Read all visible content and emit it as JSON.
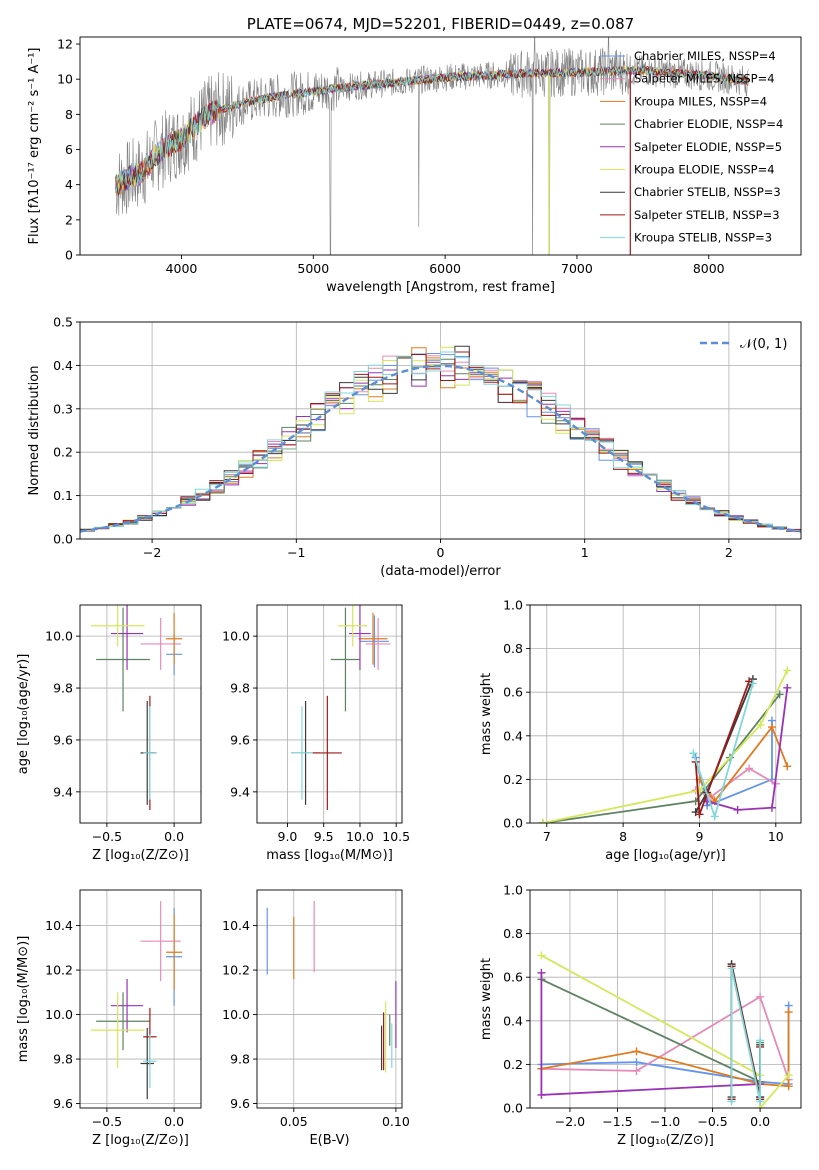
{
  "colors": {
    "chabrier_miles": "#6495ED",
    "salpeter_miles": "#E68AB8",
    "kroupa_miles": "#E07B20",
    "chabrier_elodie": "#5E8262",
    "salpeter_elodie": "#9A32B5",
    "kroupa_elodie": "#D4E85A",
    "chabrier_stelib": "#3A3A3A",
    "salpeter_stelib": "#A01818",
    "kroupa_stelib": "#80D8D8",
    "data": "#808080",
    "normal": "#5B8ED6"
  },
  "chart_data": [
    {
      "id": "spectrum",
      "type": "line",
      "title": "PLATE=0674, MJD=52201, FIBERID=0449, z=0.087",
      "xlabel": "wavelength [Angstrom, rest frame]",
      "ylabel": "Flux [fλ10⁻¹⁷ erg cm⁻² s⁻¹ A⁻¹]",
      "xlim": [
        3230,
        8700
      ],
      "ylim": [
        0,
        12.4
      ],
      "xticks": [
        "4000",
        "5000",
        "6000",
        "7000",
        "8000"
      ],
      "yticks": [
        "0",
        "2",
        "4",
        "6",
        "8",
        "10",
        "12"
      ],
      "grid": false,
      "legend_position": "right",
      "legend": [
        "Chabrier MILES, NSSP=4",
        "Salpeter MILES, NSSP=4",
        "Kroupa MILES, NSSP=4",
        "Chabrier ELODIE, NSSP=4",
        "Salpeter ELODIE, NSSP=5",
        "Kroupa ELODIE, NSSP=4",
        "Chabrier STELIB, NSSP=3",
        "Salpeter STELIB, NSSP=3",
        "Kroupa STELIB, NSSP=3"
      ],
      "data_range_x": [
        3500,
        8300
      ],
      "continuum": {
        "x": [
          3500,
          3600,
          3700,
          3800,
          3900,
          4000,
          4100,
          4200,
          4300,
          4500,
          4700,
          5000,
          5300,
          5600,
          6000,
          6500,
          7000,
          7500,
          8000,
          8300
        ],
        "y": [
          4.0,
          4.4,
          4.7,
          5.6,
          6.2,
          6.6,
          7.3,
          8.0,
          8.3,
          8.7,
          9.0,
          9.3,
          9.6,
          9.8,
          10.1,
          10.3,
          10.4,
          10.5,
          10.2,
          9.9
        ]
      }
    },
    {
      "id": "residuals",
      "type": "step",
      "xlabel": "(data-model)/error",
      "ylabel": "Normed distribution",
      "xlim": [
        -2.5,
        2.5
      ],
      "ylim": [
        0,
        0.5
      ],
      "xticks": [
        "−2",
        "−1",
        "0",
        "1",
        "2"
      ],
      "yticks": [
        "0.0",
        "0.1",
        "0.2",
        "0.3",
        "0.4",
        "0.5"
      ],
      "grid": true,
      "legend_position": "top-right",
      "legend": [
        "𝒩(0, 1)"
      ],
      "bin_width": 0.1
    },
    {
      "id": "age-vs-Z",
      "type": "errorbar",
      "xlabel": "Z [log₁₀(Z/Z⊙)]",
      "ylabel": "age  [log₁₀(age/yr)]",
      "xlim": [
        -0.7,
        0.2
      ],
      "ylim": [
        9.28,
        10.12
      ],
      "xticks": [
        "−0.5",
        "0.0"
      ],
      "yticks": [
        "9.4",
        "9.6",
        "9.8",
        "10.0"
      ],
      "grid": true,
      "points": [
        {
          "series": "chabrier_miles",
          "x": 0.0,
          "y": 9.93,
          "xerr": 0.06,
          "yerr": 0.08
        },
        {
          "series": "salpeter_miles",
          "x": -0.1,
          "y": 9.97,
          "xerr": 0.15,
          "yerr": 0.1
        },
        {
          "series": "kroupa_miles",
          "x": 0.0,
          "y": 9.99,
          "xerr": 0.06,
          "yerr": 0.1
        },
        {
          "series": "chabrier_elodie",
          "x": -0.38,
          "y": 9.91,
          "xerr": 0.2,
          "yerr": 0.2
        },
        {
          "series": "salpeter_elodie",
          "x": -0.35,
          "y": 10.01,
          "xerr": 0.12,
          "yerr": 0.14
        },
        {
          "series": "kroupa_elodie",
          "x": -0.42,
          "y": 10.04,
          "xerr": 0.2,
          "yerr": 0.08
        },
        {
          "series": "chabrier_stelib",
          "x": -0.2,
          "y": 9.55,
          "xerr": 0.05,
          "yerr": 0.2
        },
        {
          "series": "salpeter_stelib",
          "x": -0.18,
          "y": 9.55,
          "xerr": 0.05,
          "yerr": 0.22
        },
        {
          "series": "kroupa_stelib",
          "x": -0.18,
          "y": 9.55,
          "xerr": 0.05,
          "yerr": 0.18
        }
      ]
    },
    {
      "id": "age-vs-mass",
      "type": "errorbar",
      "xlabel": "mass [log₁₀(M/M⊙)]",
      "ylabel": "",
      "xlim": [
        8.58,
        10.58
      ],
      "ylim": [
        9.28,
        10.12
      ],
      "xticks": [
        "9.0",
        "9.5",
        "10.0",
        "10.5"
      ],
      "yticks": [
        "9.4",
        "9.6",
        "9.8",
        "10.0"
      ],
      "grid": true,
      "points": [
        {
          "series": "chabrier_miles",
          "x": 10.2,
          "y": 9.98,
          "xerr": 0.2,
          "yerr": 0.1
        },
        {
          "series": "salpeter_miles",
          "x": 10.25,
          "y": 9.97,
          "xerr": 0.17,
          "yerr": 0.1
        },
        {
          "series": "kroupa_miles",
          "x": 10.18,
          "y": 9.99,
          "xerr": 0.2,
          "yerr": 0.1
        },
        {
          "series": "chabrier_elodie",
          "x": 9.8,
          "y": 9.91,
          "xerr": 0.2,
          "yerr": 0.2
        },
        {
          "series": "salpeter_elodie",
          "x": 10.0,
          "y": 10.01,
          "xerr": 0.15,
          "yerr": 0.14
        },
        {
          "series": "kroupa_elodie",
          "x": 9.9,
          "y": 10.04,
          "xerr": 0.2,
          "yerr": 0.08
        },
        {
          "series": "chabrier_stelib",
          "x": 9.25,
          "y": 9.55,
          "xerr": 0.2,
          "yerr": 0.2
        },
        {
          "series": "salpeter_stelib",
          "x": 9.55,
          "y": 9.55,
          "xerr": 0.2,
          "yerr": 0.22
        },
        {
          "series": "kroupa_stelib",
          "x": 9.2,
          "y": 9.55,
          "xerr": 0.15,
          "yerr": 0.18
        }
      ]
    },
    {
      "id": "weight-vs-age",
      "type": "line",
      "xlabel": "age  [log₁₀(age/yr)]",
      "ylabel": "mass weight",
      "xlim": [
        6.78,
        10.33
      ],
      "ylim": [
        0,
        1
      ],
      "xticks": [
        "7",
        "8",
        "9",
        "10"
      ],
      "yticks": [
        "0.0",
        "0.2",
        "0.4",
        "0.6",
        "0.8",
        "1.0"
      ],
      "grid": true,
      "series": [
        {
          "key": "chabrier_miles",
          "x": [
            8.95,
            9.1,
            9.95,
            9.95
          ],
          "y": [
            0.3,
            0.08,
            0.2,
            0.47
          ]
        },
        {
          "key": "salpeter_miles",
          "x": [
            8.95,
            9.15,
            9.65,
            10.0
          ],
          "y": [
            0.15,
            0.12,
            0.25,
            0.18
          ]
        },
        {
          "key": "kroupa_miles",
          "x": [
            9.0,
            9.2,
            9.95,
            10.15
          ],
          "y": [
            0.2,
            0.1,
            0.44,
            0.26
          ]
        },
        {
          "key": "chabrier_elodie",
          "x": [
            6.95,
            8.95,
            9.4,
            10.05
          ],
          "y": [
            0.0,
            0.1,
            0.3,
            0.59
          ]
        },
        {
          "key": "salpeter_elodie",
          "x": [
            9.1,
            9.5,
            9.95,
            10.15
          ],
          "y": [
            0.1,
            0.06,
            0.07,
            0.62
          ]
        },
        {
          "key": "kroupa_elodie",
          "x": [
            6.95,
            9.0,
            9.8,
            10.15
          ],
          "y": [
            0.0,
            0.15,
            0.45,
            0.7
          ]
        },
        {
          "key": "chabrier_stelib",
          "x": [
            8.95,
            9.1,
            9.7
          ],
          "y": [
            0.05,
            0.14,
            0.66
          ]
        },
        {
          "key": "salpeter_stelib",
          "x": [
            8.95,
            9.0,
            9.65
          ],
          "y": [
            0.28,
            0.04,
            0.65
          ]
        },
        {
          "key": "kroupa_stelib",
          "x": [
            8.92,
            9.2,
            9.7
          ],
          "y": [
            0.32,
            0.03,
            0.64
          ]
        }
      ]
    },
    {
      "id": "mass-vs-Z",
      "type": "errorbar",
      "xlabel": "Z [log₁₀(Z/Z⊙)]",
      "ylabel": "mass [log₁₀(M/M⊙)]",
      "xlim": [
        -0.7,
        0.2
      ],
      "ylim": [
        9.58,
        10.56
      ],
      "xticks": [
        "−0.5",
        "0.0"
      ],
      "yticks": [
        "9.6",
        "9.8",
        "10.0",
        "10.2",
        "10.4"
      ],
      "grid": true,
      "points": [
        {
          "series": "chabrier_miles",
          "x": 0.0,
          "y": 10.26,
          "xerr": 0.06,
          "yerr": 0.22
        },
        {
          "series": "salpeter_miles",
          "x": -0.1,
          "y": 10.33,
          "xerr": 0.15,
          "yerr": 0.18
        },
        {
          "series": "kroupa_miles",
          "x": 0.0,
          "y": 10.28,
          "xerr": 0.06,
          "yerr": 0.17
        },
        {
          "series": "chabrier_elodie",
          "x": -0.38,
          "y": 9.97,
          "xerr": 0.2,
          "yerr": 0.13
        },
        {
          "series": "salpeter_elodie",
          "x": -0.35,
          "y": 10.04,
          "xerr": 0.12,
          "yerr": 0.12
        },
        {
          "series": "kroupa_elodie",
          "x": -0.42,
          "y": 9.93,
          "xerr": 0.2,
          "yerr": 0.17
        },
        {
          "series": "chabrier_stelib",
          "x": -0.2,
          "y": 9.78,
          "xerr": 0.05,
          "yerr": 0.16
        },
        {
          "series": "salpeter_stelib",
          "x": -0.18,
          "y": 9.9,
          "xerr": 0.05,
          "yerr": 0.13
        },
        {
          "series": "kroupa_stelib",
          "x": -0.18,
          "y": 9.79,
          "xerr": 0.05,
          "yerr": 0.12
        }
      ]
    },
    {
      "id": "mass-vs-ebv",
      "type": "errorbar",
      "xlabel": "E(B-V)",
      "ylabel": "",
      "xlim": [
        0.032,
        0.103
      ],
      "ylim": [
        9.58,
        10.56
      ],
      "xticks": [
        "0.05",
        "0.10"
      ],
      "yticks": [
        "9.6",
        "9.8",
        "10.0",
        "10.2",
        "10.4"
      ],
      "grid": true,
      "points": [
        {
          "series": "chabrier_miles",
          "x": 0.037,
          "y": 10.33,
          "xerr": 0,
          "yerr": 0.15
        },
        {
          "series": "salpeter_miles",
          "x": 0.06,
          "y": 10.35,
          "xerr": 0,
          "yerr": 0.16
        },
        {
          "series": "kroupa_miles",
          "x": 0.05,
          "y": 10.3,
          "xerr": 0,
          "yerr": 0.14
        },
        {
          "series": "chabrier_elodie",
          "x": 0.097,
          "y": 9.93,
          "xerr": 0,
          "yerr": 0.07
        },
        {
          "series": "salpeter_elodie",
          "x": 0.1,
          "y": 10.0,
          "xerr": 0,
          "yerr": 0.15
        },
        {
          "series": "kroupa_elodie",
          "x": 0.095,
          "y": 9.9,
          "xerr": 0,
          "yerr": 0.16
        },
        {
          "series": "chabrier_stelib",
          "x": 0.093,
          "y": 9.85,
          "xerr": 0,
          "yerr": 0.1
        },
        {
          "series": "salpeter_stelib",
          "x": 0.094,
          "y": 9.88,
          "xerr": 0,
          "yerr": 0.13
        },
        {
          "series": "kroupa_stelib",
          "x": 0.098,
          "y": 9.86,
          "xerr": 0,
          "yerr": 0.1
        }
      ]
    },
    {
      "id": "weight-vs-Z",
      "type": "line",
      "xlabel": "Z [log₁₀(Z/Z⊙)]",
      "ylabel": "mass weight",
      "xlim": [
        -2.42,
        0.43
      ],
      "ylim": [
        0,
        1
      ],
      "xticks": [
        "−2.0",
        "−1.5",
        "−1.0",
        "−0.5",
        "0.0"
      ],
      "yticks": [
        "0.0",
        "0.2",
        "0.4",
        "0.6",
        "0.8",
        "1.0"
      ],
      "grid": true,
      "series": [
        {
          "key": "chabrier_miles",
          "x": [
            -2.3,
            -1.3,
            0.0,
            0.3,
            0.3
          ],
          "y": [
            0.2,
            0.21,
            0.12,
            0.11,
            0.47
          ]
        },
        {
          "key": "salpeter_miles",
          "x": [
            -2.3,
            -1.3,
            0.0,
            0.3
          ],
          "y": [
            0.18,
            0.17,
            0.51,
            0.13
          ]
        },
        {
          "key": "kroupa_miles",
          "x": [
            -2.3,
            -1.3,
            0.0,
            0.3,
            0.3
          ],
          "y": [
            0.18,
            0.26,
            0.11,
            0.1,
            0.44
          ]
        },
        {
          "key": "chabrier_elodie",
          "x": [
            -2.3,
            0.0,
            0.0
          ],
          "y": [
            0.59,
            0.12,
            0.3
          ]
        },
        {
          "key": "salpeter_elodie",
          "x": [
            -2.3,
            -2.3,
            0.0,
            0.0
          ],
          "y": [
            0.62,
            0.06,
            0.11,
            0.05
          ]
        },
        {
          "key": "kroupa_elodie",
          "x": [
            -2.3,
            0.0,
            0.0,
            0.3
          ],
          "y": [
            0.7,
            0.15,
            0.0,
            0.15
          ]
        },
        {
          "key": "chabrier_stelib",
          "x": [
            -0.3,
            -0.3,
            0.0,
            0.0
          ],
          "y": [
            0.05,
            0.66,
            0.05,
            0.29
          ]
        },
        {
          "key": "salpeter_stelib",
          "x": [
            -0.3,
            -0.3,
            0.0,
            0.0
          ],
          "y": [
            0.04,
            0.65,
            0.04,
            0.28
          ]
        },
        {
          "key": "kroupa_stelib",
          "x": [
            -0.3,
            -0.3,
            0.0,
            0.0
          ],
          "y": [
            0.03,
            0.64,
            0.03,
            0.31
          ]
        }
      ]
    }
  ]
}
